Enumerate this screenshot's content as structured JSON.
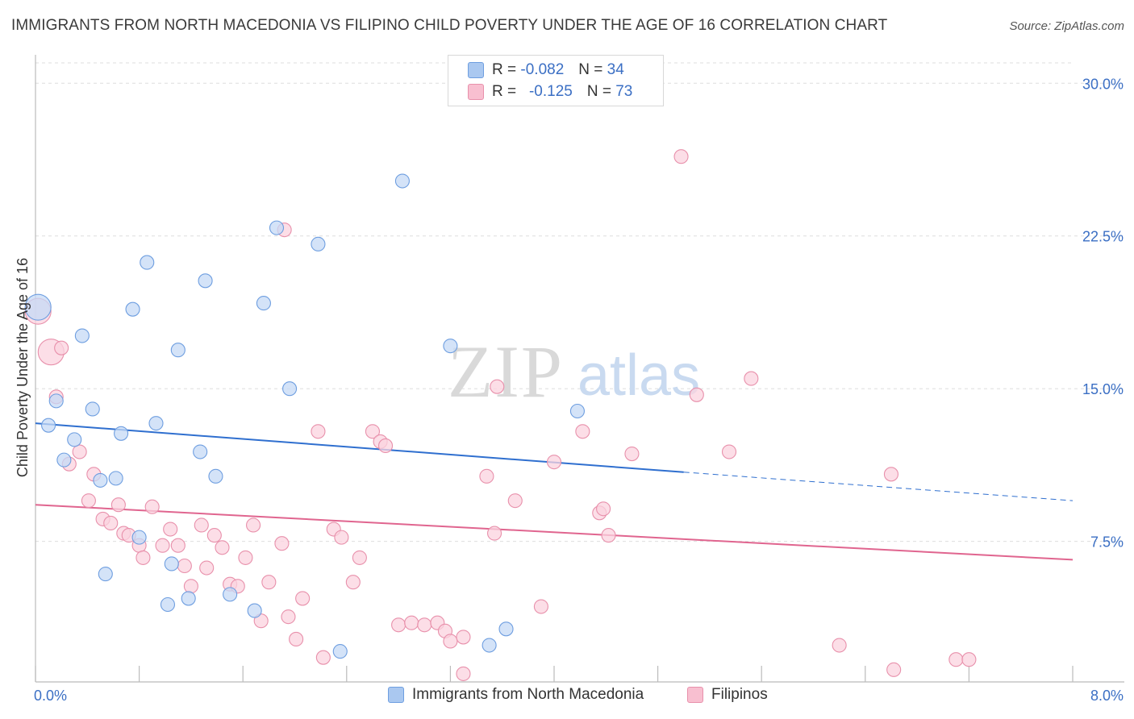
{
  "title": "IMMIGRANTS FROM NORTH MACEDONIA VS FILIPINO CHILD POVERTY UNDER THE AGE OF 16 CORRELATION CHART",
  "source": "Source: ZipAtlas.com",
  "watermark": {
    "zip": "ZIP",
    "atlas": "atlas"
  },
  "legend_top": [
    {
      "r_label": "R =",
      "r_value": "-0.082",
      "n_label": "N =",
      "n_value": "34",
      "color": "#aac8f0",
      "border": "#6e9ee0"
    },
    {
      "r_label": "R =",
      "r_value": "-0.125",
      "n_label": "N =",
      "n_value": "73",
      "color": "#f8bfd0",
      "border": "#e890ab"
    }
  ],
  "legend_bottom": [
    {
      "label": "Immigrants from North Macedonia",
      "color": "#aac8f0",
      "border": "#6e9ee0"
    },
    {
      "label": "Filipinos",
      "color": "#f8bfd0",
      "border": "#e890ab"
    }
  ],
  "chart_data": {
    "type": "scatter",
    "title": "IMMIGRANTS FROM NORTH MACEDONIA VS FILIPINO CHILD POVERTY UNDER THE AGE OF 16 CORRELATION CHART",
    "xlabel": "",
    "ylabel": "Child Poverty Under the Age of 16",
    "xlim": [
      0,
      8
    ],
    "ylim": [
      0.6,
      31
    ],
    "x_tick_labels": [
      "0.0%",
      "8.0%"
    ],
    "y_ticks": [
      7.5,
      15.0,
      22.5,
      30.0
    ],
    "y_tick_labels": [
      "7.5%",
      "15.0%",
      "22.5%",
      "30.0%"
    ],
    "grid": true,
    "legend_position": "top-center",
    "series": [
      {
        "name": "Immigrants from North Macedonia",
        "color": "#6e9ee0",
        "fill": "#c6daf5",
        "trend": {
          "x": [
            0,
            5.0
          ],
          "y": [
            13.3,
            10.9
          ],
          "dashed_to": [
            8.0,
            9.5
          ]
        },
        "points": [
          {
            "x": 0.02,
            "y": 19.0,
            "big": true
          },
          {
            "x": 0.1,
            "y": 13.2
          },
          {
            "x": 0.16,
            "y": 14.4
          },
          {
            "x": 0.22,
            "y": 11.5
          },
          {
            "x": 0.3,
            "y": 12.5
          },
          {
            "x": 0.36,
            "y": 17.6
          },
          {
            "x": 0.44,
            "y": 14.0
          },
          {
            "x": 0.5,
            "y": 10.5
          },
          {
            "x": 0.54,
            "y": 5.9
          },
          {
            "x": 0.62,
            "y": 10.6
          },
          {
            "x": 0.66,
            "y": 12.8
          },
          {
            "x": 0.75,
            "y": 18.9
          },
          {
            "x": 0.8,
            "y": 7.7
          },
          {
            "x": 0.86,
            "y": 21.2
          },
          {
            "x": 0.93,
            "y": 13.3
          },
          {
            "x": 1.02,
            "y": 4.4
          },
          {
            "x": 1.05,
            "y": 6.4
          },
          {
            "x": 1.1,
            "y": 16.9
          },
          {
            "x": 1.18,
            "y": 4.7
          },
          {
            "x": 1.27,
            "y": 11.9
          },
          {
            "x": 1.31,
            "y": 20.3
          },
          {
            "x": 1.39,
            "y": 10.7
          },
          {
            "x": 1.5,
            "y": 4.9
          },
          {
            "x": 1.69,
            "y": 4.1
          },
          {
            "x": 1.76,
            "y": 19.2
          },
          {
            "x": 1.86,
            "y": 22.9
          },
          {
            "x": 1.96,
            "y": 15.0
          },
          {
            "x": 2.18,
            "y": 22.1
          },
          {
            "x": 2.35,
            "y": 2.1
          },
          {
            "x": 2.83,
            "y": 25.2
          },
          {
            "x": 3.2,
            "y": 17.1
          },
          {
            "x": 3.5,
            "y": 2.4
          },
          {
            "x": 3.63,
            "y": 3.2
          },
          {
            "x": 4.18,
            "y": 13.9
          }
        ]
      },
      {
        "name": "Filipinos",
        "color": "#e890ab",
        "fill": "#fbd3df",
        "trend": {
          "x": [
            0,
            8.0
          ],
          "y": [
            9.3,
            6.6
          ]
        },
        "points": [
          {
            "x": 0.02,
            "y": 18.8,
            "big": true
          },
          {
            "x": 0.12,
            "y": 16.8,
            "big": true
          },
          {
            "x": 0.2,
            "y": 17.0
          },
          {
            "x": 0.16,
            "y": 14.6
          },
          {
            "x": 0.26,
            "y": 11.3
          },
          {
            "x": 0.34,
            "y": 11.9
          },
          {
            "x": 0.41,
            "y": 9.5
          },
          {
            "x": 0.45,
            "y": 10.8
          },
          {
            "x": 0.52,
            "y": 8.6
          },
          {
            "x": 0.58,
            "y": 8.4
          },
          {
            "x": 0.64,
            "y": 9.3
          },
          {
            "x": 0.68,
            "y": 7.9
          },
          {
            "x": 0.72,
            "y": 7.8
          },
          {
            "x": 0.8,
            "y": 7.3
          },
          {
            "x": 0.83,
            "y": 6.7
          },
          {
            "x": 0.9,
            "y": 9.2
          },
          {
            "x": 0.98,
            "y": 7.3
          },
          {
            "x": 1.04,
            "y": 8.1
          },
          {
            "x": 1.1,
            "y": 7.3
          },
          {
            "x": 1.15,
            "y": 6.3
          },
          {
            "x": 1.2,
            "y": 5.3
          },
          {
            "x": 1.28,
            "y": 8.3
          },
          {
            "x": 1.32,
            "y": 6.2
          },
          {
            "x": 1.38,
            "y": 7.8
          },
          {
            "x": 1.44,
            "y": 7.2
          },
          {
            "x": 1.5,
            "y": 5.4
          },
          {
            "x": 1.56,
            "y": 5.3
          },
          {
            "x": 1.62,
            "y": 6.7
          },
          {
            "x": 1.68,
            "y": 8.3
          },
          {
            "x": 1.74,
            "y": 3.6
          },
          {
            "x": 1.8,
            "y": 5.5
          },
          {
            "x": 1.9,
            "y": 7.4
          },
          {
            "x": 1.95,
            "y": 3.8
          },
          {
            "x": 2.01,
            "y": 2.7
          },
          {
            "x": 2.06,
            "y": 4.7
          },
          {
            "x": 2.18,
            "y": 12.9
          },
          {
            "x": 2.22,
            "y": 1.8
          },
          {
            "x": 2.3,
            "y": 8.1
          },
          {
            "x": 2.36,
            "y": 7.7
          },
          {
            "x": 2.45,
            "y": 5.5
          },
          {
            "x": 2.5,
            "y": 6.7
          },
          {
            "x": 2.6,
            "y": 12.9
          },
          {
            "x": 2.66,
            "y": 12.4
          },
          {
            "x": 2.7,
            "y": 12.2
          },
          {
            "x": 2.8,
            "y": 3.4
          },
          {
            "x": 2.9,
            "y": 3.5
          },
          {
            "x": 3.0,
            "y": 3.4
          },
          {
            "x": 3.1,
            "y": 3.5
          },
          {
            "x": 3.16,
            "y": 3.1
          },
          {
            "x": 3.2,
            "y": 2.6
          },
          {
            "x": 3.3,
            "y": 2.8
          },
          {
            "x": 3.3,
            "y": 1.0
          },
          {
            "x": 3.48,
            "y": 10.7
          },
          {
            "x": 3.54,
            "y": 7.9
          },
          {
            "x": 3.56,
            "y": 15.1
          },
          {
            "x": 3.7,
            "y": 9.5
          },
          {
            "x": 3.9,
            "y": 4.3
          },
          {
            "x": 4.0,
            "y": 11.4
          },
          {
            "x": 4.22,
            "y": 12.9
          },
          {
            "x": 4.35,
            "y": 8.9
          },
          {
            "x": 4.38,
            "y": 9.1
          },
          {
            "x": 4.42,
            "y": 7.8
          },
          {
            "x": 4.6,
            "y": 11.8
          },
          {
            "x": 4.98,
            "y": 26.4
          },
          {
            "x": 5.1,
            "y": 14.7
          },
          {
            "x": 5.35,
            "y": 11.9
          },
          {
            "x": 5.52,
            "y": 15.5
          },
          {
            "x": 6.2,
            "y": 2.4
          },
          {
            "x": 6.6,
            "y": 10.8
          },
          {
            "x": 6.62,
            "y": 1.2
          },
          {
            "x": 7.1,
            "y": 1.7
          },
          {
            "x": 7.2,
            "y": 1.7
          },
          {
            "x": 1.92,
            "y": 22.8
          }
        ]
      }
    ]
  }
}
